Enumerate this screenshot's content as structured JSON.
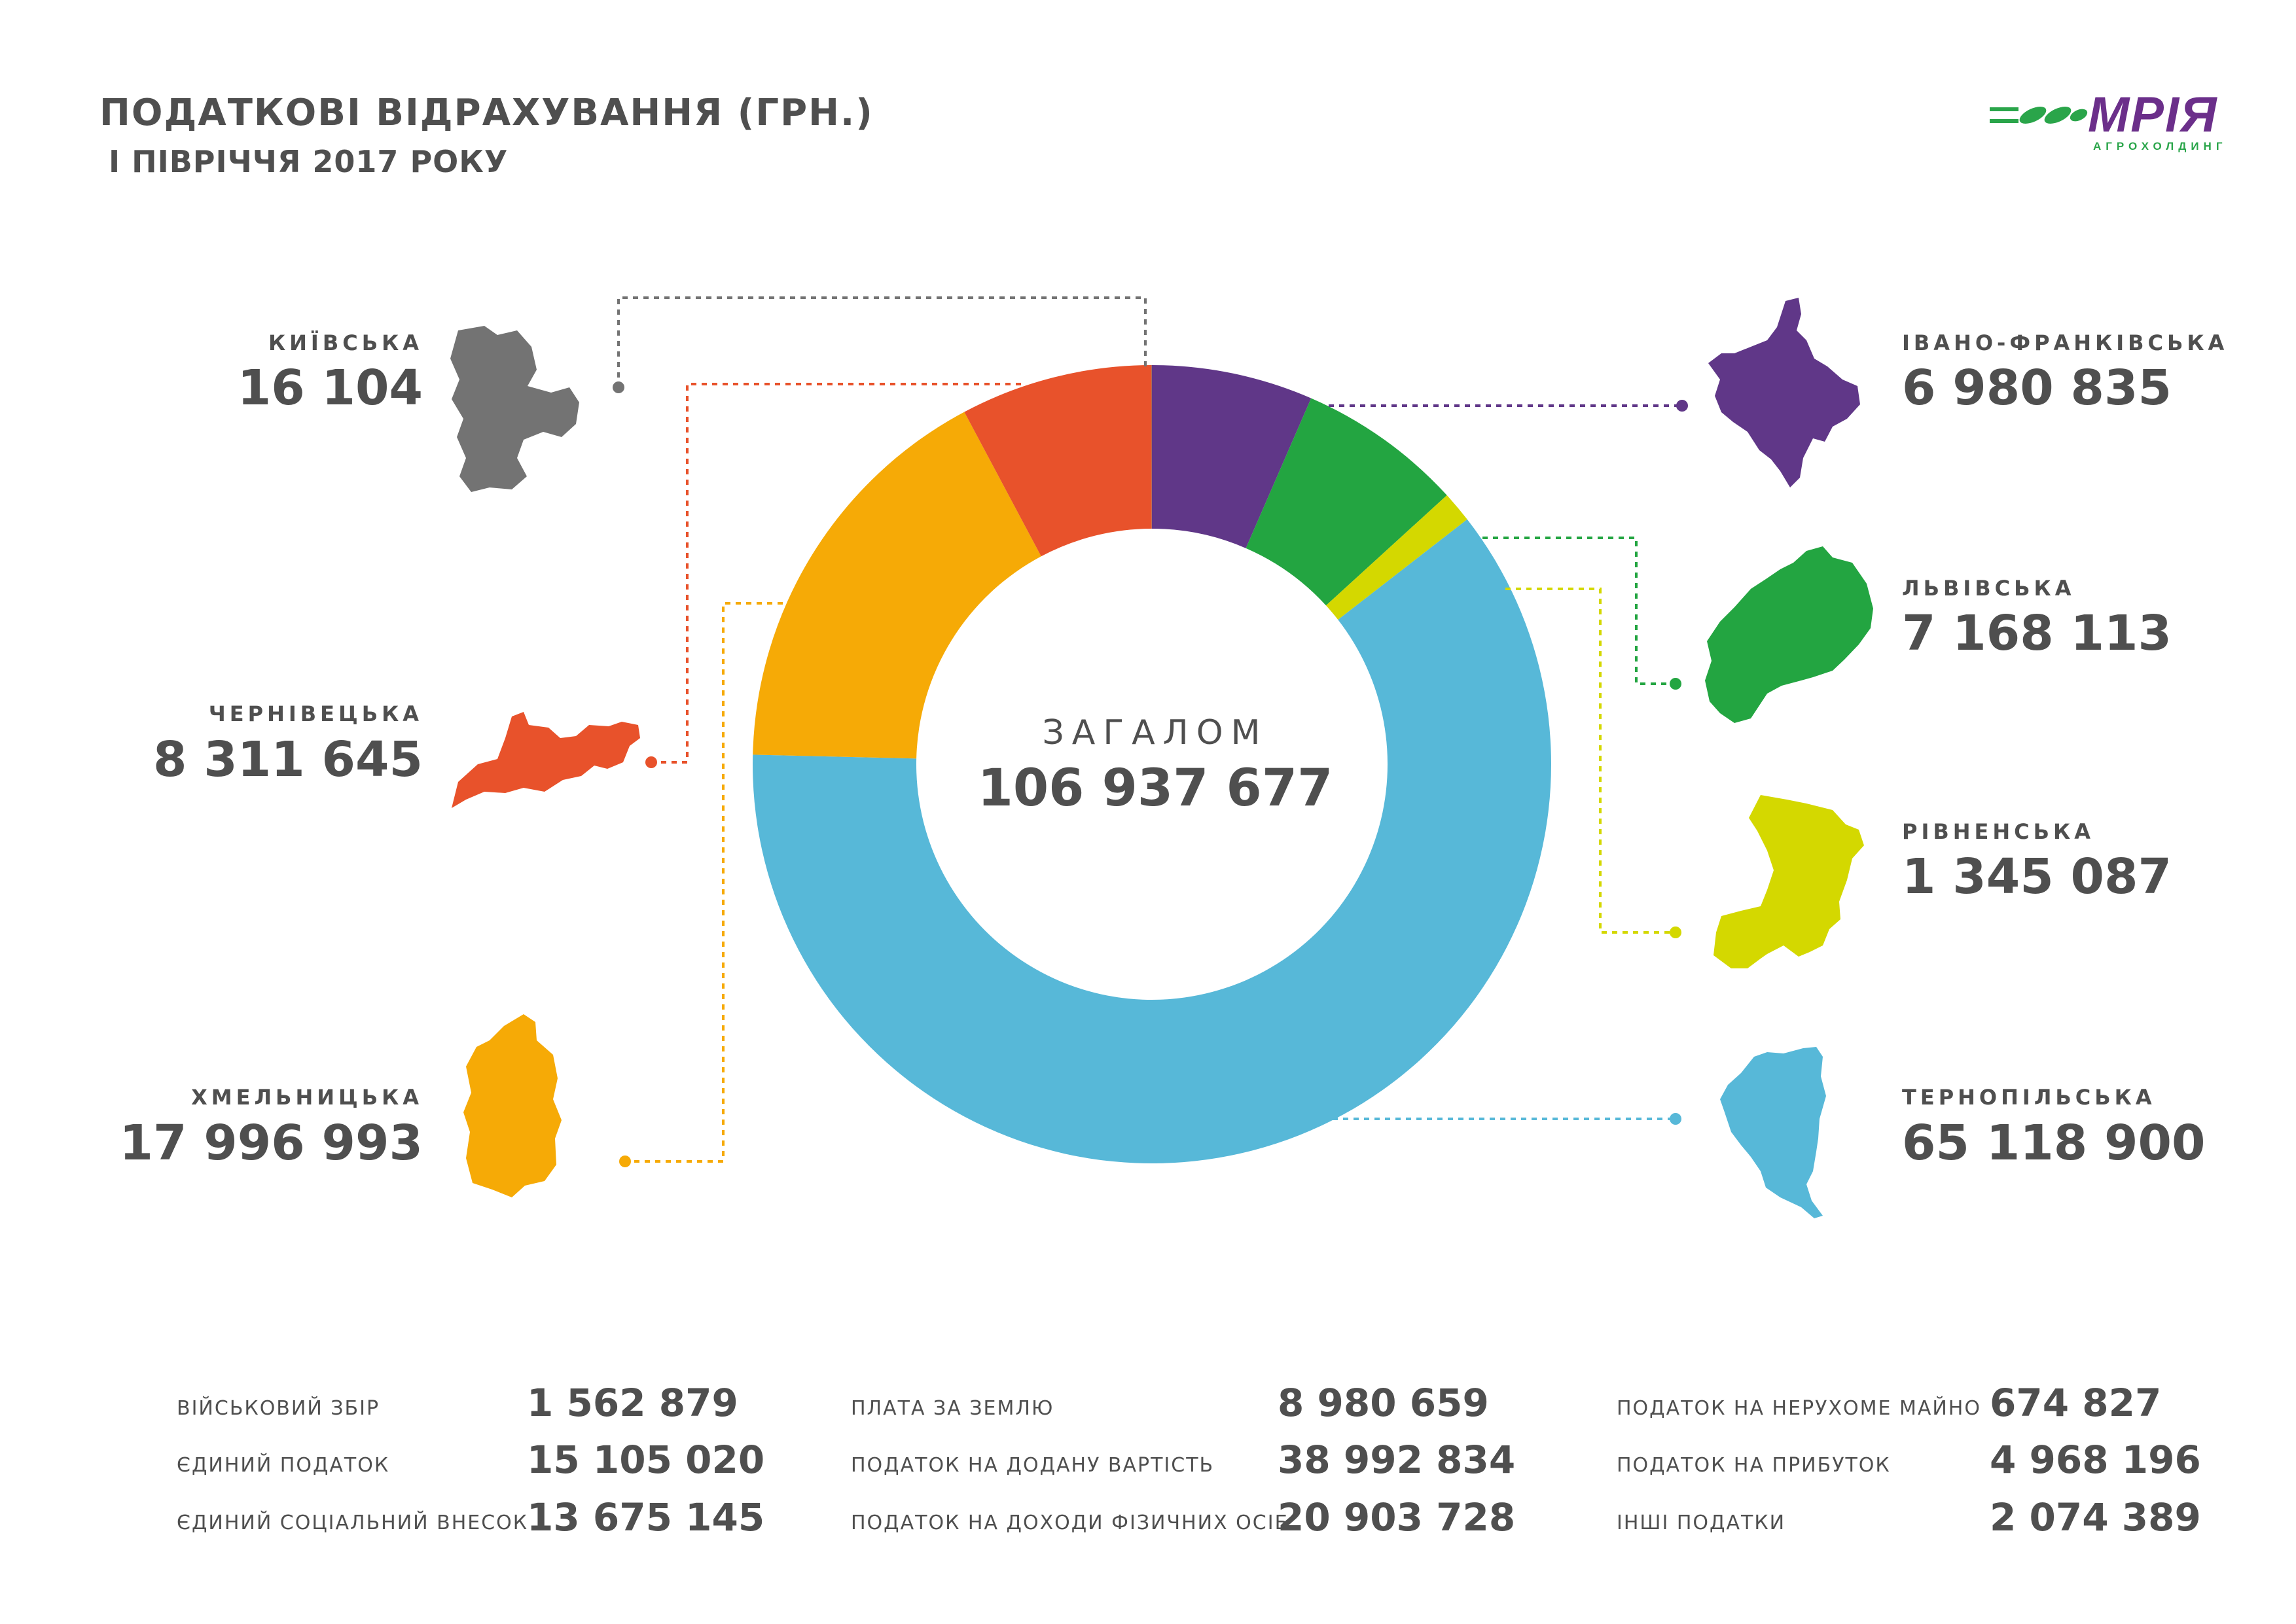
{
  "header": {
    "title": "ПОДАТКОВІ ВІДРАХУВАННЯ (ГРН.)",
    "subtitle": "І ПІВРІЧЧЯ 2017 РОКУ"
  },
  "logo": {
    "name": "МРІЯ",
    "tagline": "АГРОХОЛДИНГ",
    "brand_purple": "#6b2f8a",
    "brand_green": "#2aa54a"
  },
  "chart_data": {
    "type": "pie",
    "center_label": "ЗАГАЛОМ",
    "total_label": "106 937 677",
    "series": [
      {
        "name": "ІВАНО-ФРАНКІВСЬКА",
        "value": 6980835,
        "label": "6 980 835",
        "color": "#603788"
      },
      {
        "name": "ЛЬВІВСЬКА",
        "value": 7168113,
        "label": "7 168 113",
        "color": "#23a541"
      },
      {
        "name": "РІВНЕНСЬКА",
        "value": 1345087,
        "label": "1 345 087",
        "color": "#d4d800"
      },
      {
        "name": "ТЕРНОПІЛЬСЬКА",
        "value": 65118900,
        "label": "65 118 900",
        "color": "#57b8d8"
      },
      {
        "name": "ХМЕЛЬНИЦЬКА",
        "value": 17996993,
        "label": "17 996 993",
        "color": "#f6aa06"
      },
      {
        "name": "ЧЕРНІВЕЦЬКА",
        "value": 8311645,
        "label": "8 311 645",
        "color": "#e8522b"
      },
      {
        "name": "КИЇВСЬКА",
        "value": 16104,
        "label": "16 104",
        "color": "#737373"
      }
    ]
  },
  "taxes": [
    {
      "label": "ВІЙСЬКОВИЙ ЗБІР",
      "value": "1 562 879"
    },
    {
      "label": "ЄДИНИЙ ПОДАТОК",
      "value": "15 105 020"
    },
    {
      "label": "ЄДИНИЙ СОЦІАЛЬНИЙ ВНЕСОК",
      "value": "13 675 145"
    },
    {
      "label": "ПЛАТА ЗА ЗЕМЛЮ",
      "value": "8 980 659"
    },
    {
      "label": "ПОДАТОК НА ДОДАНУ ВАРТІСТЬ",
      "value": "38 992 834"
    },
    {
      "label": "ПОДАТОК НА ДОХОДИ ФІЗИЧНИХ ОСІБ",
      "value": "20 903 728"
    },
    {
      "label": "ПОДАТОК НА НЕРУХОМЕ МАЙНО",
      "value": "674 827"
    },
    {
      "label": "ПОДАТОК НА ПРИБУТОК",
      "value": "4 968 196"
    },
    {
      "label": "ІНШІ ПОДАТКИ",
      "value": "2 074 389"
    }
  ]
}
